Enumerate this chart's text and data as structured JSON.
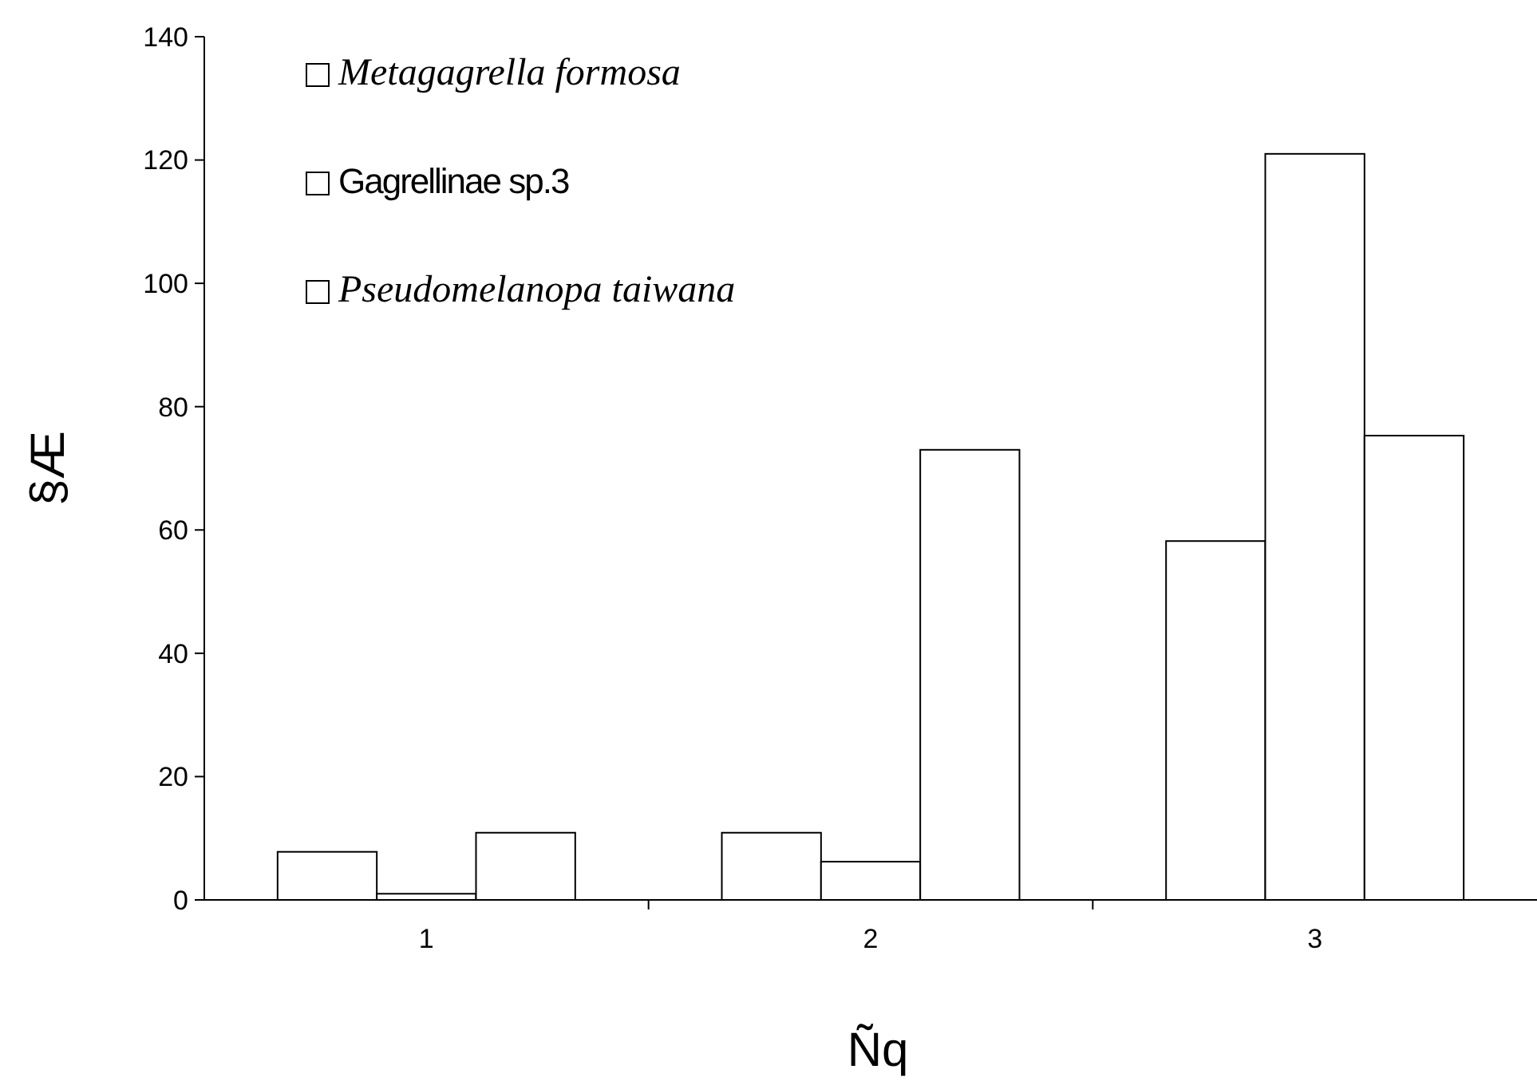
{
  "chart_data": {
    "type": "bar",
    "xlabel": "Ñq",
    "ylabel": "§Æ",
    "categories": [
      "1",
      "2",
      "3"
    ],
    "series": [
      {
        "name": "Metagagrella formosa",
        "color": "#ffffff",
        "values": [
          7.8,
          10.9,
          58.2
        ]
      },
      {
        "name": "Gagrellinae sp.3",
        "color": "#ffffff",
        "values": [
          1,
          6.2,
          121
        ]
      },
      {
        "name": "Pseudomelanopa taiwana",
        "color": "#ffffff",
        "values": [
          10.9,
          73,
          75.3
        ]
      }
    ],
    "ylim": [
      0,
      140
    ],
    "yticks": [
      0,
      20,
      40,
      60,
      80,
      100,
      120,
      140
    ],
    "grid": false,
    "legend": "top left"
  }
}
